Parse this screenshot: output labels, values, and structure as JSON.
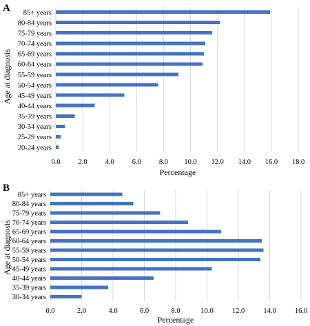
{
  "chart_data": [
    {
      "type": "bar",
      "orientation": "horizontal",
      "panel": "A",
      "categories": [
        "85+ years",
        "80-84 years",
        "75-79 years",
        "70-74 years",
        "65-69 years",
        "60-64 years",
        "55-59 years",
        "50-54 years",
        "45-49 years",
        "40-44 years",
        "35-39 years",
        "30-34 years",
        "25-29 years",
        "20-24 years"
      ],
      "values": [
        15.9,
        12.2,
        11.6,
        11.1,
        11.0,
        10.9,
        9.1,
        7.6,
        5.1,
        2.9,
        1.4,
        0.7,
        0.35,
        0.2
      ],
      "xlabel": "Percentage",
      "ylabel": "Age at diagnosis",
      "xlim": [
        0,
        18
      ],
      "xticks": [
        "0.0",
        "2.0",
        "4.0",
        "6.0",
        "8.0",
        "10.0",
        "12.0",
        "14.0",
        "16.0",
        "18.0"
      ],
      "grid": "vertical",
      "color": "#4472c4"
    },
    {
      "type": "bar",
      "orientation": "horizontal",
      "panel": "B",
      "categories": [
        "85+ years",
        "80-84 years",
        "75-79 years",
        "70-74 years",
        "65-69 years",
        "60-64 years",
        "55-59 years",
        "50-54 years",
        "45-49 years",
        "40-44 years",
        "35-39 years",
        "30-34 years"
      ],
      "values": [
        4.6,
        5.3,
        7.0,
        8.8,
        10.9,
        13.5,
        13.6,
        13.4,
        10.3,
        6.6,
        3.7,
        2.0
      ],
      "xlabel": "Percentage",
      "ylabel": "Age at diagnosis",
      "xlim": [
        0,
        16
      ],
      "xticks": [
        "0.0",
        "2.0",
        "4.0",
        "6.0",
        "8.0",
        "10.0",
        "12.0",
        "14.0",
        "16.0"
      ],
      "grid": "vertical",
      "color": "#4472c4"
    }
  ]
}
